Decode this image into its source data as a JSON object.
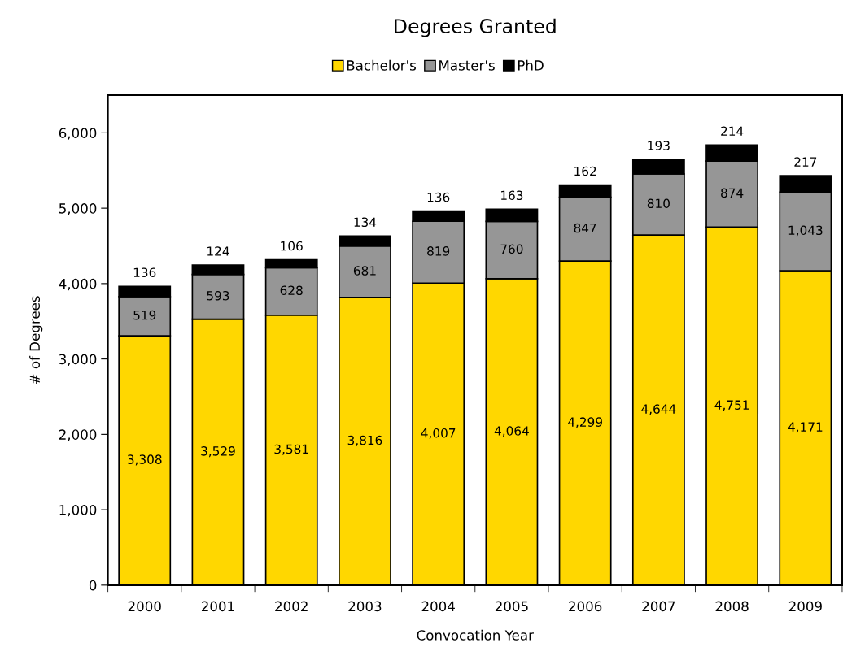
{
  "chart_data": {
    "type": "bar",
    "title": "Degrees Granted",
    "xlabel": "Convocation Year",
    "ylabel": "# of Degrees",
    "categories": [
      "2000",
      "2001",
      "2002",
      "2003",
      "2004",
      "2005",
      "2006",
      "2007",
      "2008",
      "2009"
    ],
    "series": [
      {
        "name": "Bachelor's",
        "color": "#ffd700",
        "values": [
          3308,
          3529,
          3581,
          3816,
          4007,
          4064,
          4299,
          4644,
          4751,
          4171
        ],
        "value_labels": [
          "3,308",
          "3,529",
          "3,581",
          "3,816",
          "4,007",
          "4,064",
          "4,299",
          "4,644",
          "4,751",
          "4,171"
        ]
      },
      {
        "name": "Master's",
        "color": "#969696",
        "values": [
          519,
          593,
          628,
          681,
          819,
          760,
          847,
          810,
          874,
          1043
        ],
        "value_labels": [
          "519",
          "593",
          "628",
          "681",
          "819",
          "760",
          "847",
          "810",
          "874",
          "1,043"
        ]
      },
      {
        "name": "PhD",
        "color": "#000000",
        "values": [
          136,
          124,
          106,
          134,
          136,
          163,
          162,
          193,
          214,
          217
        ],
        "value_labels": [
          "136",
          "124",
          "106",
          "134",
          "136",
          "163",
          "162",
          "193",
          "214",
          "217"
        ]
      }
    ],
    "stacked": true,
    "legend": "top",
    "grid": false,
    "ylim": [
      0,
      6500
    ],
    "yticks": [
      {
        "value": 0,
        "label": "0"
      },
      {
        "value": 1000,
        "label": "1,000"
      },
      {
        "value": 2000,
        "label": "2,000"
      },
      {
        "value": 3000,
        "label": "3,000"
      },
      {
        "value": 4000,
        "label": "4,000"
      },
      {
        "value": 5000,
        "label": "5,000"
      },
      {
        "value": 6000,
        "label": "6,000"
      }
    ]
  }
}
